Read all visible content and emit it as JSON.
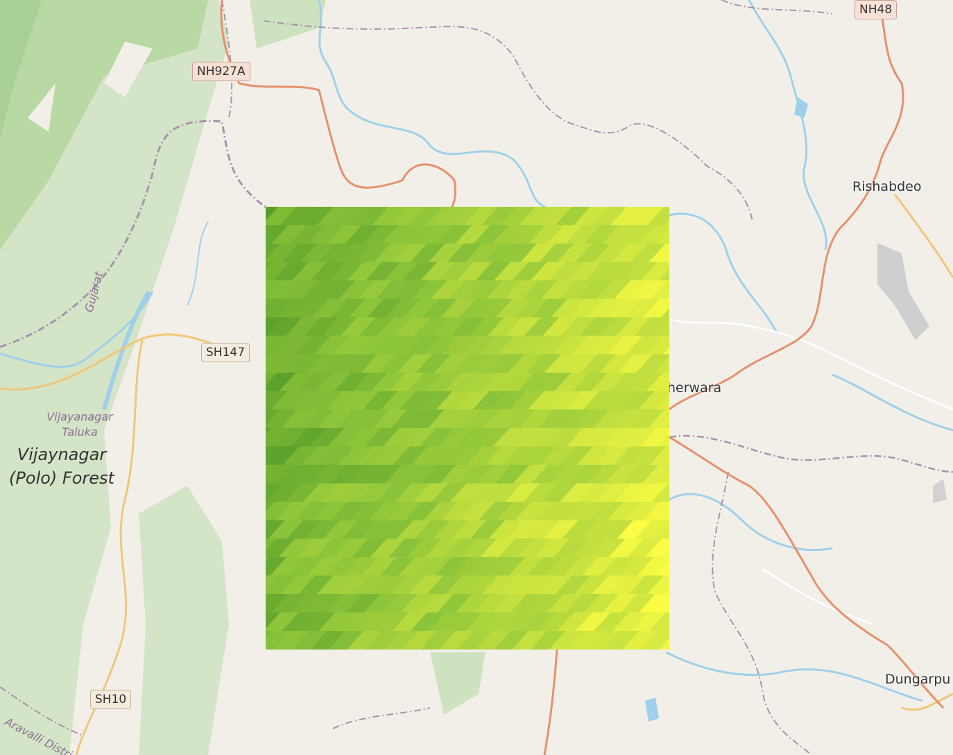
{
  "map": {
    "road_labels": [
      "NH927A",
      "NH48",
      "SH147",
      "SH10"
    ],
    "places": {
      "rishabdeo": "Rishabdeo",
      "kherwara": "herwara",
      "dungarpur": "Dungarpu"
    },
    "forest_label": [
      "Vijaynagar",
      "(Polo) Forest"
    ],
    "taluka_label": [
      "Vijayanagar",
      "Taluka"
    ],
    "state_label": "Gujarat",
    "district_label": "Aravalli District"
  },
  "raster_overlay": {
    "grid": {
      "columns": 22,
      "rows": 24
    },
    "colors": {
      "dark": "#3d8a22",
      "mid": "#8cc43a",
      "light": "#fbfc44"
    }
  },
  "colors": {
    "background": "#f2efe9",
    "forest": "#d4e4c6",
    "forest_dark": "#b8d8a4",
    "river": "#9fd0ea",
    "primary_road": "#e7906d",
    "secondary_road": "#f0c67a",
    "admin_boundary": "#a893ad"
  }
}
